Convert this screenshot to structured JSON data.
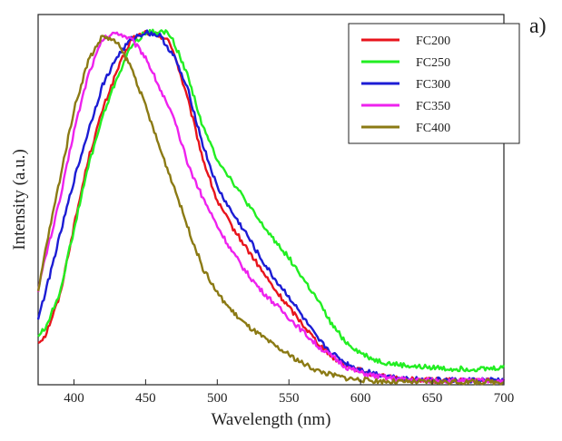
{
  "panel_label": "a)",
  "chart_data": {
    "type": "line",
    "title": "",
    "xlabel": "Wavelength (nm)",
    "ylabel": "Intensity (a.u.)",
    "xlim": [
      375,
      700
    ],
    "ylim": [
      0,
      1.05
    ],
    "x_ticks": [
      400,
      450,
      500,
      550,
      600,
      650,
      700
    ],
    "y_ticks_shown": false,
    "grid": false,
    "legend_position": "top-right",
    "series": [
      {
        "name": "FC200",
        "color": "#e8141c",
        "x": [
          375,
          380,
          390,
          400,
          410,
          420,
          430,
          440,
          450,
          460,
          465,
          470,
          480,
          490,
          500,
          510,
          520,
          530,
          540,
          550,
          560,
          570,
          580,
          590,
          600,
          610,
          620,
          630,
          640,
          650,
          660,
          670,
          680,
          690,
          700
        ],
        "values": [
          0.12,
          0.14,
          0.25,
          0.45,
          0.64,
          0.78,
          0.89,
          0.98,
          1.0,
          0.99,
          0.98,
          0.94,
          0.8,
          0.64,
          0.52,
          0.45,
          0.39,
          0.33,
          0.27,
          0.22,
          0.17,
          0.12,
          0.08,
          0.055,
          0.04,
          0.028,
          0.02,
          0.016,
          0.014,
          0.013,
          0.012,
          0.012,
          0.012,
          0.012,
          0.012
        ]
      },
      {
        "name": "FC250",
        "color": "#22ee22",
        "x": [
          375,
          380,
          390,
          400,
          410,
          420,
          430,
          440,
          450,
          460,
          465,
          470,
          480,
          490,
          500,
          510,
          520,
          530,
          540,
          550,
          560,
          570,
          580,
          590,
          600,
          610,
          620,
          630,
          640,
          650,
          660,
          670,
          680,
          690,
          700
        ],
        "values": [
          0.14,
          0.16,
          0.26,
          0.44,
          0.62,
          0.76,
          0.87,
          0.96,
          1.0,
          1.0,
          1.0,
          0.97,
          0.87,
          0.73,
          0.64,
          0.58,
          0.52,
          0.46,
          0.41,
          0.36,
          0.3,
          0.24,
          0.17,
          0.12,
          0.09,
          0.07,
          0.06,
          0.055,
          0.05,
          0.05,
          0.045,
          0.045,
          0.045,
          0.045,
          0.05
        ]
      },
      {
        "name": "FC300",
        "color": "#1c1cd4",
        "x": [
          375,
          380,
          390,
          400,
          410,
          420,
          430,
          440,
          450,
          460,
          465,
          470,
          480,
          490,
          500,
          510,
          520,
          530,
          540,
          550,
          560,
          570,
          580,
          590,
          600,
          610,
          620,
          630,
          640,
          650,
          660,
          670,
          680,
          690,
          700
        ],
        "values": [
          0.19,
          0.26,
          0.42,
          0.58,
          0.72,
          0.85,
          0.93,
          0.98,
          1.0,
          0.99,
          0.96,
          0.93,
          0.83,
          0.68,
          0.56,
          0.49,
          0.43,
          0.36,
          0.3,
          0.25,
          0.19,
          0.13,
          0.09,
          0.06,
          0.043,
          0.032,
          0.024,
          0.018,
          0.015,
          0.014,
          0.013,
          0.013,
          0.013,
          0.013,
          0.013
        ]
      },
      {
        "name": "FC350",
        "color": "#ee22ee",
        "x": [
          375,
          380,
          390,
          400,
          410,
          420,
          430,
          440,
          450,
          460,
          470,
          480,
          490,
          500,
          510,
          520,
          530,
          540,
          550,
          560,
          570,
          580,
          590,
          600,
          610,
          620,
          630,
          640,
          650,
          660,
          670,
          680,
          690,
          700
        ],
        "values": [
          0.27,
          0.36,
          0.52,
          0.72,
          0.88,
          0.98,
          1.0,
          0.98,
          0.93,
          0.84,
          0.75,
          0.62,
          0.53,
          0.45,
          0.38,
          0.32,
          0.27,
          0.23,
          0.19,
          0.15,
          0.11,
          0.08,
          0.05,
          0.034,
          0.025,
          0.019,
          0.015,
          0.013,
          0.012,
          0.011,
          0.011,
          0.011,
          0.011,
          0.011
        ]
      },
      {
        "name": "FC400",
        "color": "#8b7a14",
        "x": [
          375,
          380,
          390,
          400,
          410,
          420,
          430,
          440,
          450,
          460,
          470,
          480,
          490,
          500,
          510,
          520,
          530,
          540,
          550,
          560,
          570,
          580,
          590,
          600,
          610,
          620,
          630,
          640,
          650,
          660,
          670,
          680,
          690,
          700
        ],
        "values": [
          0.26,
          0.38,
          0.58,
          0.78,
          0.92,
          0.99,
          0.97,
          0.9,
          0.79,
          0.67,
          0.56,
          0.44,
          0.33,
          0.26,
          0.21,
          0.17,
          0.14,
          0.11,
          0.085,
          0.06,
          0.04,
          0.028,
          0.019,
          0.014,
          0.011,
          0.009,
          0.008,
          0.008,
          0.008,
          0.008,
          0.008,
          0.008,
          0.008,
          0.008
        ]
      }
    ]
  }
}
